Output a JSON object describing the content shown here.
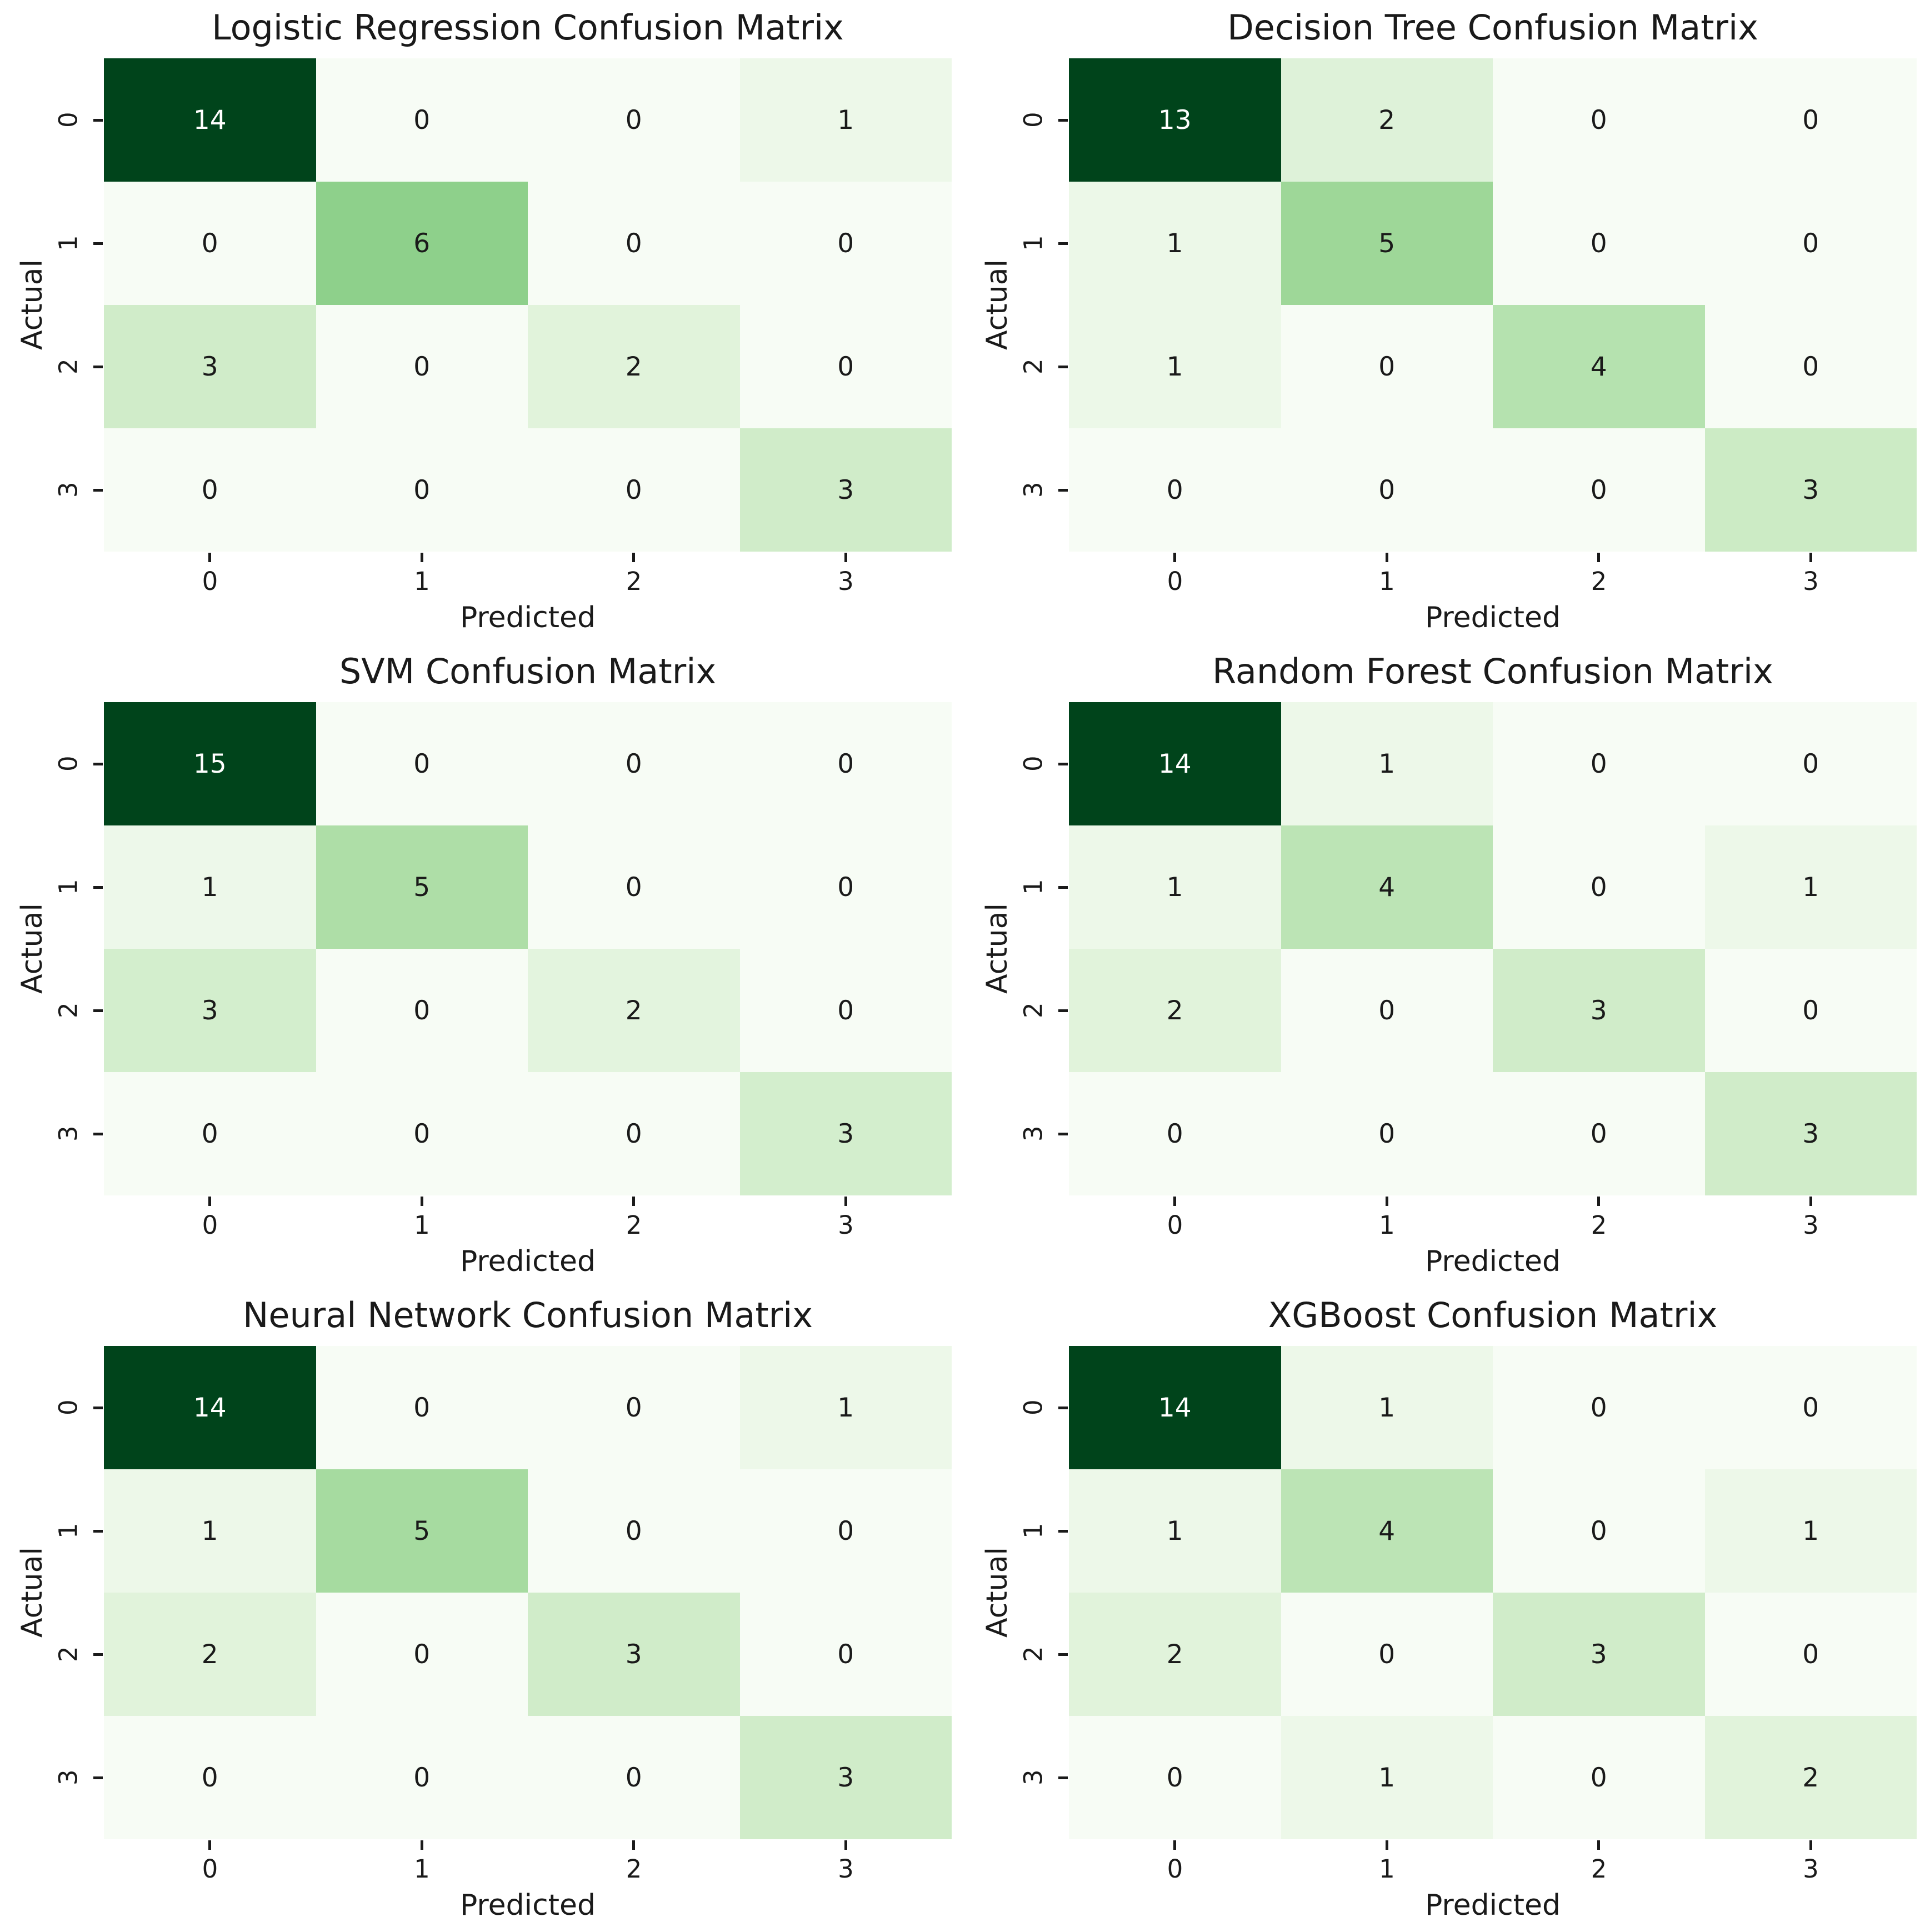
{
  "figure": {
    "background": "#ffffff",
    "description": "Grid of six confusion matrix heatmaps comparing classifier models"
  },
  "common": {
    "xlabel": "Predicted",
    "ylabel": "Actual",
    "x_tick_labels": [
      "0",
      "1",
      "2",
      "3"
    ],
    "y_tick_labels": [
      "0",
      "1",
      "2",
      "3"
    ]
  },
  "colors": {
    "colormap": "Greens",
    "greens_stops": [
      "#f7fcf5",
      "#e5f5e0",
      "#c7e9c0",
      "#a1d99b",
      "#74c476",
      "#41ab5d",
      "#238b45",
      "#006d2c",
      "#00441b"
    ],
    "annot_dark": "#1a1a1a",
    "annot_light": "#ffffff",
    "tick_color": "#1a1a1a",
    "white_text_threshold": 0.7
  },
  "chart_data": [
    {
      "type": "heatmap",
      "title": "Logistic Regression Confusion Matrix",
      "xlabel": "Predicted",
      "ylabel": "Actual",
      "x_tick_labels": [
        "0",
        "1",
        "2",
        "3"
      ],
      "y_tick_labels": [
        "0",
        "1",
        "2",
        "3"
      ],
      "matrix": [
        [
          14,
          0,
          0,
          1
        ],
        [
          0,
          6,
          0,
          0
        ],
        [
          3,
          0,
          2,
          0
        ],
        [
          0,
          0,
          0,
          3
        ]
      ],
      "vmin": 0,
      "vmax": 14
    },
    {
      "type": "heatmap",
      "title": "Decision Tree Confusion Matrix",
      "xlabel": "Predicted",
      "ylabel": "Actual",
      "x_tick_labels": [
        "0",
        "1",
        "2",
        "3"
      ],
      "y_tick_labels": [
        "0",
        "1",
        "2",
        "3"
      ],
      "matrix": [
        [
          13,
          2,
          0,
          0
        ],
        [
          1,
          5,
          0,
          0
        ],
        [
          1,
          0,
          4,
          0
        ],
        [
          0,
          0,
          0,
          3
        ]
      ],
      "vmin": 0,
      "vmax": 13
    },
    {
      "type": "heatmap",
      "title": "SVM Confusion Matrix",
      "xlabel": "Predicted",
      "ylabel": "Actual",
      "x_tick_labels": [
        "0",
        "1",
        "2",
        "3"
      ],
      "y_tick_labels": [
        "0",
        "1",
        "2",
        "3"
      ],
      "matrix": [
        [
          15,
          0,
          0,
          0
        ],
        [
          1,
          5,
          0,
          0
        ],
        [
          3,
          0,
          2,
          0
        ],
        [
          0,
          0,
          0,
          3
        ]
      ],
      "vmin": 0,
      "vmax": 15
    },
    {
      "type": "heatmap",
      "title": "Random Forest Confusion Matrix",
      "xlabel": "Predicted",
      "ylabel": "Actual",
      "x_tick_labels": [
        "0",
        "1",
        "2",
        "3"
      ],
      "y_tick_labels": [
        "0",
        "1",
        "2",
        "3"
      ],
      "matrix": [
        [
          14,
          1,
          0,
          0
        ],
        [
          1,
          4,
          0,
          1
        ],
        [
          2,
          0,
          3,
          0
        ],
        [
          0,
          0,
          0,
          3
        ]
      ],
      "vmin": 0,
      "vmax": 14
    },
    {
      "type": "heatmap",
      "title": "Neural Network Confusion Matrix",
      "xlabel": "Predicted",
      "ylabel": "Actual",
      "x_tick_labels": [
        "0",
        "1",
        "2",
        "3"
      ],
      "y_tick_labels": [
        "0",
        "1",
        "2",
        "3"
      ],
      "matrix": [
        [
          14,
          0,
          0,
          1
        ],
        [
          1,
          5,
          0,
          0
        ],
        [
          2,
          0,
          3,
          0
        ],
        [
          0,
          0,
          0,
          3
        ]
      ],
      "vmin": 0,
      "vmax": 14
    },
    {
      "type": "heatmap",
      "title": "XGBoost Confusion Matrix",
      "xlabel": "Predicted",
      "ylabel": "Actual",
      "x_tick_labels": [
        "0",
        "1",
        "2",
        "3"
      ],
      "y_tick_labels": [
        "0",
        "1",
        "2",
        "3"
      ],
      "matrix": [
        [
          14,
          1,
          0,
          0
        ],
        [
          1,
          4,
          0,
          1
        ],
        [
          2,
          0,
          3,
          0
        ],
        [
          0,
          1,
          0,
          2
        ]
      ],
      "vmin": 0,
      "vmax": 14
    }
  ]
}
